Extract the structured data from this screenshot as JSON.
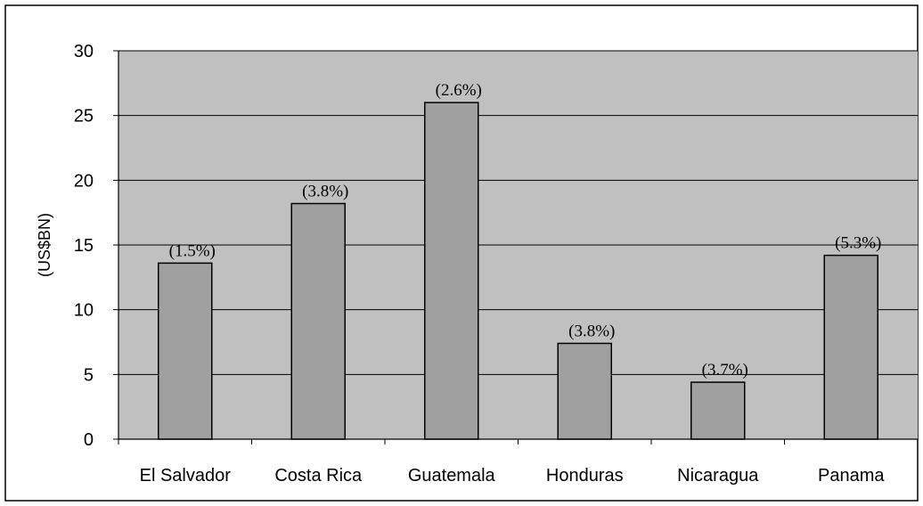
{
  "chart_data": {
    "type": "bar",
    "title": "",
    "xlabel": "",
    "ylabel": "(US$BN)",
    "ylim": [
      0,
      30
    ],
    "yticks": [
      0,
      5,
      10,
      15,
      20,
      25,
      30
    ],
    "grid": true,
    "legend": "none",
    "categories": [
      "El Salvador",
      "Costa Rica",
      "Guatemala",
      "Honduras",
      "Nicaragua",
      "Panama"
    ],
    "values": [
      13.6,
      18.2,
      26.0,
      7.4,
      4.4,
      14.2
    ],
    "data_labels": [
      "(1.5%)",
      "(3.8%)",
      "(2.6%)",
      "(3.8%)",
      "(3.7%)",
      "(5.3%)"
    ],
    "colors": {
      "bar": "#a0a0a0",
      "plot_background": "#c0c0c0",
      "gridline": "#000000"
    }
  }
}
